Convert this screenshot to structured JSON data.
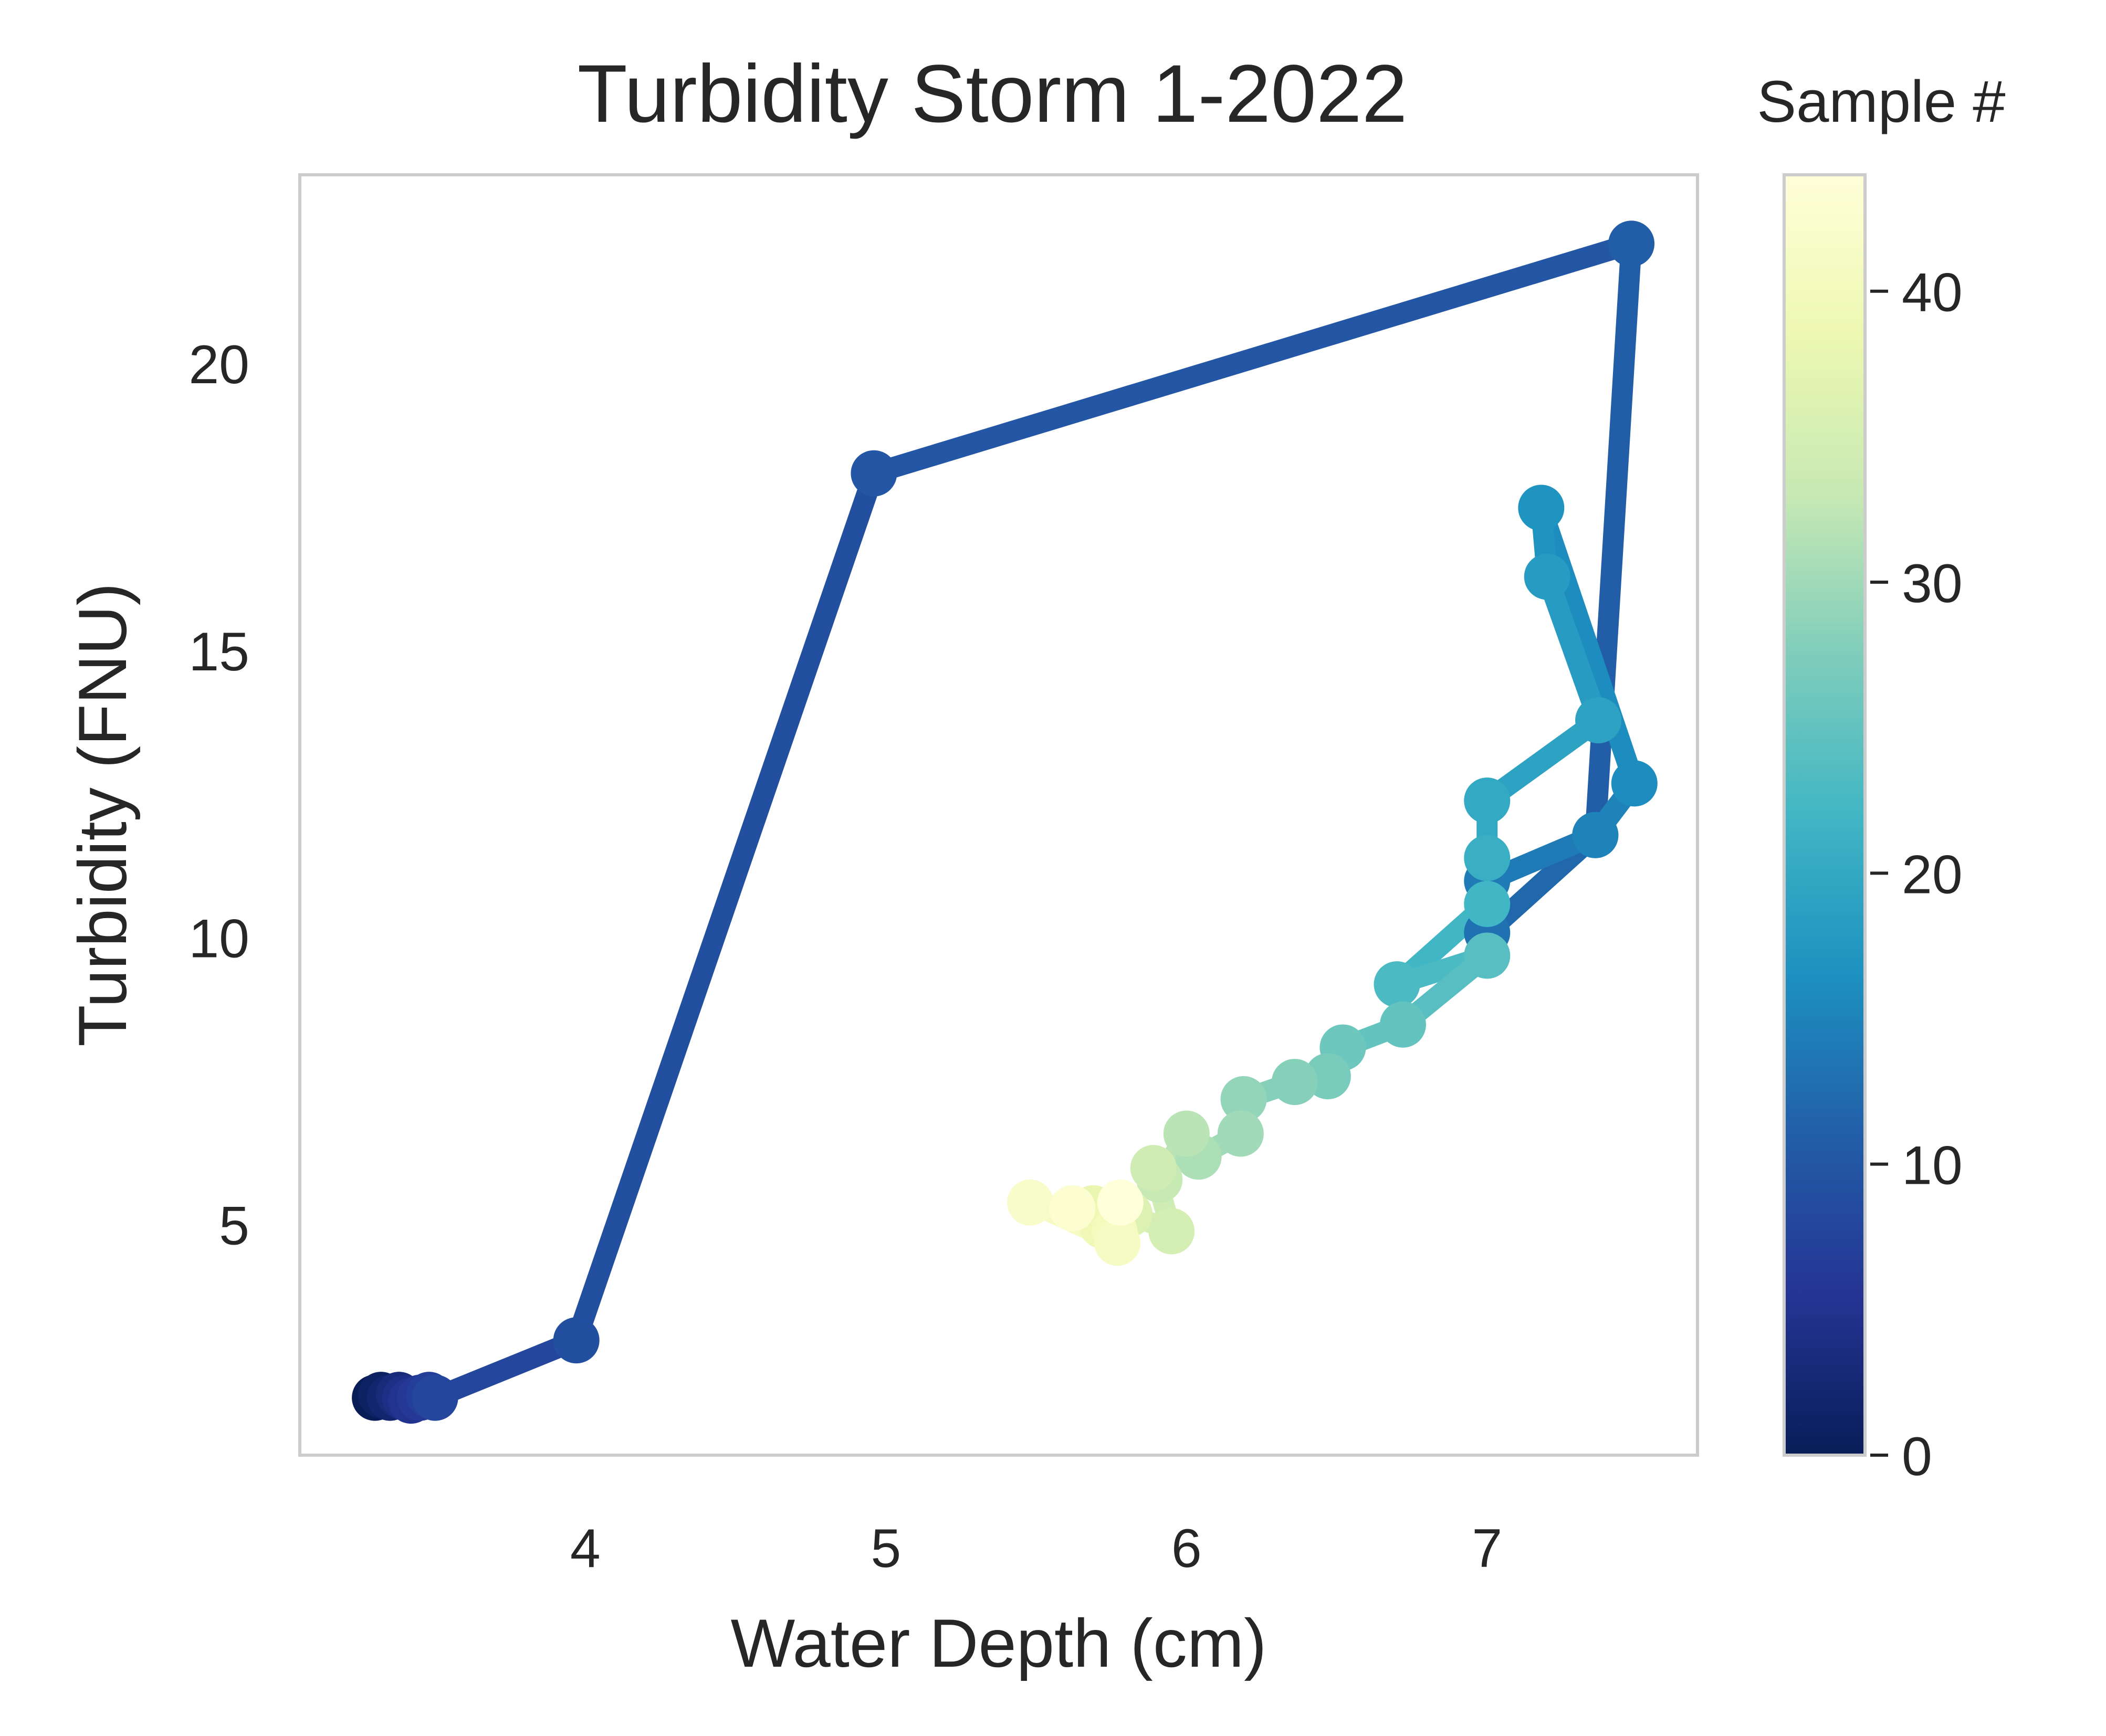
{
  "chart_data": {
    "type": "line",
    "title": "Turbidity Storm 1-2022",
    "xlabel": "Water Depth (cm)",
    "ylabel": "Turbidity (FNU)",
    "xlim": [
      3.05,
      7.7
    ],
    "ylim": [
      1.0,
      23.3
    ],
    "xticks": [
      4,
      5,
      6,
      7
    ],
    "yticks": [
      5,
      10,
      15,
      20
    ],
    "grid": false,
    "colorbar": {
      "title": "Sample #",
      "range": [
        0,
        44
      ],
      "ticks": [
        0,
        10,
        20,
        30,
        40
      ],
      "colormap": "YlGnBu",
      "colors": [
        "#081d58",
        "#253494",
        "#225ea8",
        "#1d91c0",
        "#41b6c4",
        "#7fcdbb",
        "#c7e9b4",
        "#edf8b1",
        "#ffffd9"
      ]
    },
    "series": [
      {
        "x": [
          3.3,
          3.32,
          3.35,
          3.38,
          3.4,
          3.42,
          3.45,
          3.48,
          3.5,
          3.97,
          4.96,
          7.48,
          7.36,
          7.0,
          7.0,
          7.36,
          7.49,
          7.18,
          7.2,
          7.37,
          7.0,
          7.0,
          7.0,
          6.7,
          7.0,
          6.72,
          6.52,
          6.47,
          6.36,
          6.19,
          6.18,
          6.04,
          6.0,
          5.91,
          5.89,
          5.95,
          5.81,
          5.75,
          5.69,
          5.72,
          5.76,
          5.77,
          5.48,
          5.62,
          5.78
        ],
        "y": [
          2.0,
          2.05,
          2.0,
          2.05,
          2.0,
          1.95,
          2.0,
          2.05,
          2.0,
          3.0,
          18.1,
          22.1,
          11.8,
          10.1,
          11.0,
          11.8,
          12.7,
          17.5,
          16.3,
          13.8,
          12.4,
          11.4,
          10.6,
          9.2,
          9.7,
          8.5,
          8.1,
          7.6,
          7.5,
          7.2,
          6.6,
          6.2,
          6.6,
          5.8,
          6.0,
          4.9,
          5.2,
          5.0,
          5.3,
          5.0,
          4.9,
          4.7,
          5.4,
          5.3,
          5.4
        ]
      }
    ]
  }
}
